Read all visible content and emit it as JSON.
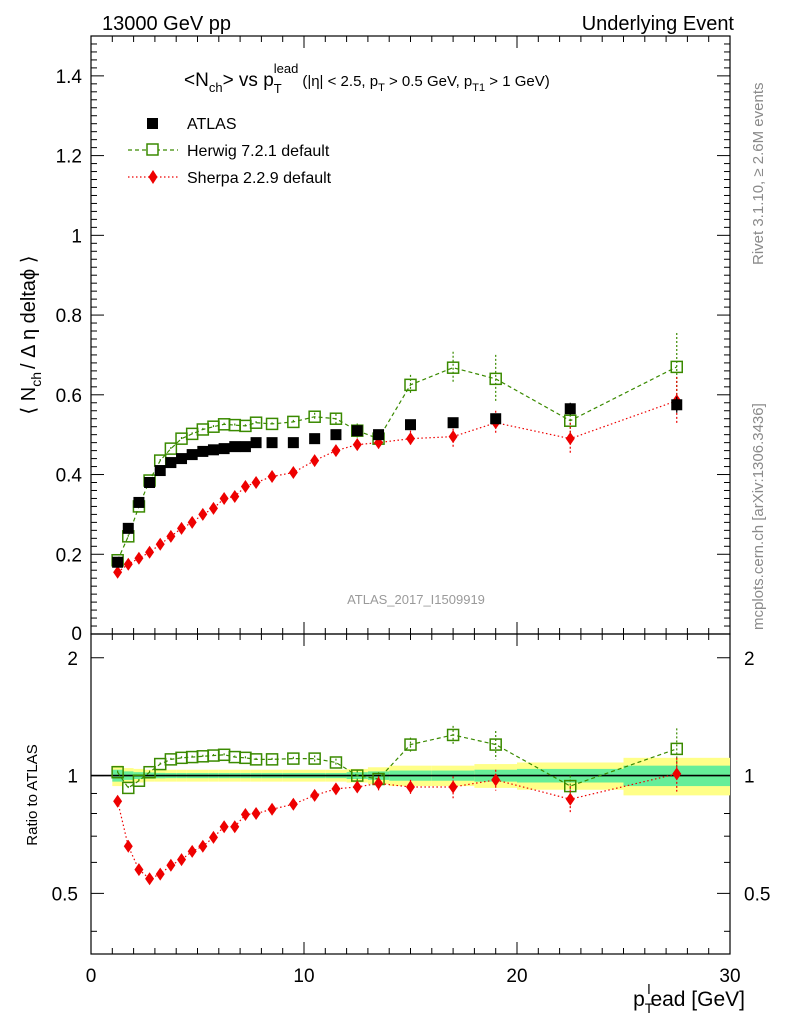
{
  "header": {
    "left": "13000 GeV pp",
    "right": "Underlying Event"
  },
  "side_text": {
    "rivet": "Rivet 3.1.10, ≥ 2.6M events",
    "mcplots": "mcplots.cern.ch [arXiv:1306.3436]"
  },
  "watermark": "ATLAS_2017_I1509919",
  "title": {
    "main": "<N",
    "main_sub": "ch",
    "main_mid": "> vs p",
    "main_sub2": "T",
    "main_sup": "lead",
    "cuts_a": "(|η| < 2.5, p",
    "cuts_sub1": "T",
    "cuts_b": " > 0.5 GeV, p",
    "cuts_sub2": "T1",
    "cuts_c": " > 1 GeV)"
  },
  "ylabel_main": {
    "a": "⟨ N",
    "sub": "ch",
    "b": "/ Δ η deltaϕ ⟩"
  },
  "ylabel_ratio": "Ratio to ATLAS",
  "xlabel": {
    "a": "p",
    "sub": "T",
    "sup": "l",
    "b": "ead [GeV]"
  },
  "legend": [
    {
      "label": "ATLAS",
      "color": "#000000",
      "marker": "square-filled"
    },
    {
      "label": "Herwig 7.2.1 default",
      "color": "#3a8a00",
      "marker": "square-open"
    },
    {
      "label": "Sherpa 2.2.9 default",
      "color": "#ee0000",
      "marker": "diamond-filled"
    }
  ],
  "chart_data": [
    {
      "type": "scatter",
      "panel": "main",
      "xlim": [
        0,
        30
      ],
      "ylim": [
        0,
        1.5
      ],
      "yticks": [
        0.2,
        0.4,
        0.6,
        0.8,
        1,
        1.2,
        1.4
      ],
      "ytick_labels": [
        "0.2",
        "0.4",
        "0.6",
        "0.8",
        "1",
        "1.2",
        "1.4"
      ],
      "ytick_bottom_label": "0",
      "x": [
        1.25,
        1.75,
        2.25,
        2.75,
        3.25,
        3.75,
        4.25,
        4.75,
        5.25,
        5.75,
        6.25,
        6.75,
        7.25,
        7.75,
        8.5,
        9.5,
        10.5,
        11.5,
        12.5,
        13.5,
        15,
        17,
        19,
        22.5,
        27.5
      ],
      "series": [
        {
          "name": "ATLAS",
          "y": [
            0.18,
            0.265,
            0.33,
            0.38,
            0.41,
            0.43,
            0.44,
            0.45,
            0.458,
            0.462,
            0.465,
            0.47,
            0.47,
            0.48,
            0.48,
            0.48,
            0.49,
            0.5,
            0.51,
            0.5,
            0.525,
            0.53,
            0.54,
            0.565,
            0.575
          ],
          "err": [
            0.006,
            0.006,
            0.006,
            0.006,
            0.006,
            0.006,
            0.006,
            0.006,
            0.006,
            0.006,
            0.006,
            0.006,
            0.006,
            0.006,
            0.006,
            0.006,
            0.006,
            0.006,
            0.007,
            0.008,
            0.008,
            0.01,
            0.012,
            0.015,
            0.02
          ]
        },
        {
          "name": "Herwig 7.2.1 default",
          "y": [
            0.185,
            0.245,
            0.32,
            0.385,
            0.435,
            0.465,
            0.49,
            0.502,
            0.513,
            0.52,
            0.526,
            0.524,
            0.522,
            0.53,
            0.527,
            0.532,
            0.545,
            0.54,
            0.51,
            0.49,
            0.625,
            0.668,
            0.64,
            0.535,
            0.67
          ],
          "err": [
            0.004,
            0.004,
            0.004,
            0.004,
            0.004,
            0.004,
            0.004,
            0.004,
            0.004,
            0.004,
            0.004,
            0.004,
            0.004,
            0.004,
            0.004,
            0.005,
            0.01,
            0.012,
            0.018,
            0.02,
            0.025,
            0.04,
            0.06,
            0.035,
            0.085
          ]
        },
        {
          "name": "Sherpa 2.2.9 default",
          "y": [
            0.155,
            0.175,
            0.19,
            0.205,
            0.225,
            0.245,
            0.265,
            0.28,
            0.3,
            0.315,
            0.34,
            0.345,
            0.37,
            0.38,
            0.395,
            0.405,
            0.435,
            0.46,
            0.475,
            0.48,
            0.49,
            0.495,
            0.53,
            0.49,
            0.585
          ],
          "err": [
            0.004,
            0.004,
            0.004,
            0.004,
            0.004,
            0.004,
            0.004,
            0.004,
            0.004,
            0.004,
            0.004,
            0.004,
            0.004,
            0.005,
            0.006,
            0.006,
            0.008,
            0.01,
            0.015,
            0.02,
            0.02,
            0.03,
            0.03,
            0.04,
            0.06
          ]
        }
      ]
    },
    {
      "type": "scatter",
      "panel": "ratio",
      "xlim": [
        0,
        30
      ],
      "ylim": [
        0.35,
        2.3
      ],
      "yscale": "log",
      "yticks": [
        0.5,
        1,
        2
      ],
      "ytick_labels": [
        "0.5",
        "1",
        "2"
      ],
      "xticks": [
        0,
        10,
        20,
        30
      ],
      "xtick_labels": [
        "0",
        "10",
        "20",
        "30"
      ],
      "band": {
        "x_edges": [
          1,
          1.5,
          2,
          2.5,
          3,
          3.5,
          4,
          4.5,
          5,
          5.5,
          6,
          6.5,
          7,
          7.5,
          8,
          9,
          10,
          11,
          12,
          13,
          14,
          16,
          18,
          20,
          25,
          30
        ],
        "inner": [
          0.035,
          0.025,
          0.02,
          0.018,
          0.016,
          0.015,
          0.015,
          0.015,
          0.015,
          0.015,
          0.015,
          0.015,
          0.015,
          0.015,
          0.015,
          0.015,
          0.015,
          0.015,
          0.02,
          0.025,
          0.03,
          0.03,
          0.035,
          0.04,
          0.06
        ],
        "outer": [
          0.06,
          0.045,
          0.04,
          0.035,
          0.035,
          0.035,
          0.035,
          0.035,
          0.035,
          0.035,
          0.035,
          0.035,
          0.035,
          0.035,
          0.035,
          0.035,
          0.035,
          0.035,
          0.04,
          0.05,
          0.06,
          0.06,
          0.07,
          0.08,
          0.11
        ],
        "inner_color": "#66ee99",
        "outer_color": "#ffff88"
      },
      "x": [
        1.25,
        1.75,
        2.25,
        2.75,
        3.25,
        3.75,
        4.25,
        4.75,
        5.25,
        5.75,
        6.25,
        6.75,
        7.25,
        7.75,
        8.5,
        9.5,
        10.5,
        11.5,
        12.5,
        13.5,
        15,
        17,
        19,
        22.5,
        27.5
      ],
      "series": [
        {
          "name": "Herwig 7.2.1 default",
          "y": [
            1.02,
            0.93,
            0.97,
            1.02,
            1.07,
            1.1,
            1.11,
            1.115,
            1.12,
            1.125,
            1.13,
            1.115,
            1.11,
            1.1,
            1.1,
            1.105,
            1.105,
            1.08,
            1.0,
            0.98,
            1.2,
            1.27,
            1.2,
            0.94,
            1.17
          ],
          "err": [
            0.01,
            0.01,
            0.01,
            0.01,
            0.01,
            0.01,
            0.01,
            0.01,
            0.01,
            0.01,
            0.01,
            0.01,
            0.01,
            0.01,
            0.01,
            0.012,
            0.02,
            0.025,
            0.03,
            0.04,
            0.05,
            0.07,
            0.1,
            0.06,
            0.15
          ]
        },
        {
          "name": "Sherpa 2.2.9 default",
          "y": [
            0.86,
            0.66,
            0.575,
            0.545,
            0.56,
            0.59,
            0.61,
            0.64,
            0.66,
            0.695,
            0.74,
            0.74,
            0.795,
            0.8,
            0.82,
            0.845,
            0.89,
            0.925,
            0.935,
            0.955,
            0.935,
            0.935,
            0.975,
            0.87,
            1.01
          ],
          "err": [
            0.01,
            0.01,
            0.01,
            0.01,
            0.01,
            0.01,
            0.01,
            0.01,
            0.01,
            0.01,
            0.01,
            0.01,
            0.01,
            0.01,
            0.012,
            0.015,
            0.02,
            0.02,
            0.03,
            0.04,
            0.04,
            0.06,
            0.06,
            0.07,
            0.1
          ]
        }
      ]
    }
  ]
}
